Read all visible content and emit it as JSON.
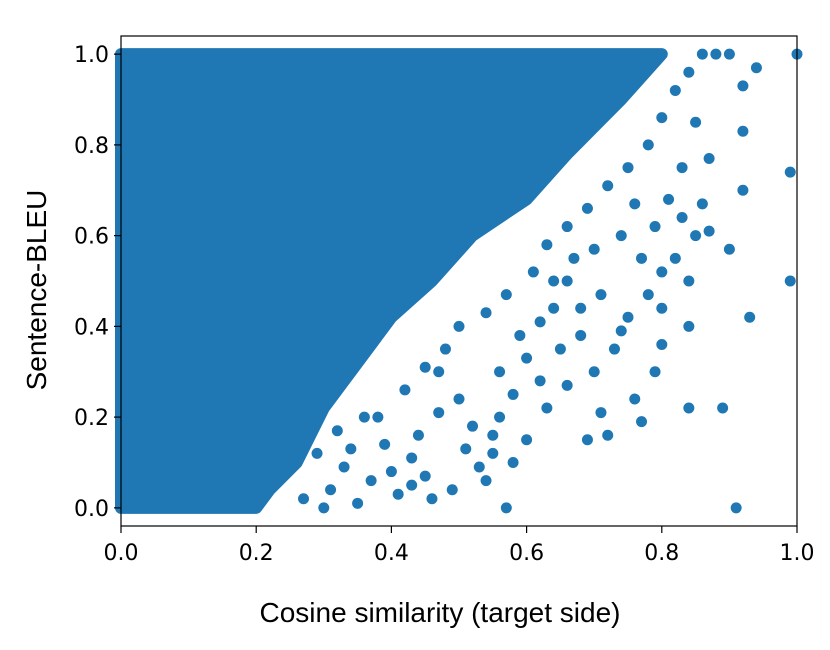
{
  "chart_data": {
    "type": "scatter",
    "title": "",
    "xlabel": "Cosine similarity  (target side)",
    "ylabel": "Sentence-BLEU",
    "xlim": [
      0.0,
      1.0
    ],
    "ylim": [
      -0.04,
      1.04
    ],
    "x_ticks": [
      "0.0",
      "0.2",
      "0.4",
      "0.6",
      "0.8",
      "1.0"
    ],
    "y_ticks": [
      "0.0",
      "0.2",
      "0.4",
      "0.6",
      "0.8",
      "1.0"
    ],
    "x_tick_values": [
      0.0,
      0.2,
      0.4,
      0.6,
      0.8,
      1.0
    ],
    "y_tick_values": [
      0.0,
      0.2,
      0.4,
      0.6,
      0.8,
      1.0
    ],
    "grid": false,
    "legend": "none",
    "marker_color": "#1f77b4",
    "dense_region_boundary": [
      [
        0.0,
        0.0
      ],
      [
        0.0,
        1.0
      ],
      [
        0.8,
        1.0
      ],
      [
        0.74,
        0.9
      ],
      [
        0.66,
        0.78
      ],
      [
        0.6,
        0.68
      ],
      [
        0.52,
        0.6
      ],
      [
        0.46,
        0.5
      ],
      [
        0.4,
        0.42
      ],
      [
        0.34,
        0.3
      ],
      [
        0.3,
        0.22
      ],
      [
        0.26,
        0.1
      ],
      [
        0.22,
        0.04
      ],
      [
        0.2,
        0.0
      ]
    ],
    "series": [
      {
        "values": [
          [
            1.0,
            1.0
          ],
          [
            0.94,
            0.97
          ],
          [
            0.92,
            0.93
          ],
          [
            0.99,
            0.74
          ],
          [
            0.99,
            0.5
          ],
          [
            0.92,
            0.7
          ],
          [
            0.93,
            0.42
          ],
          [
            0.9,
            0.57
          ],
          [
            0.91,
            0.0
          ],
          [
            0.89,
            0.22
          ],
          [
            0.87,
            0.61
          ],
          [
            0.86,
            0.67
          ],
          [
            0.87,
            0.77
          ],
          [
            0.92,
            0.83
          ],
          [
            0.84,
            0.22
          ],
          [
            0.84,
            0.4
          ],
          [
            0.84,
            0.5
          ],
          [
            0.8,
            0.44
          ],
          [
            0.79,
            0.3
          ],
          [
            0.77,
            0.19
          ],
          [
            0.72,
            0.16
          ],
          [
            0.77,
            0.55
          ],
          [
            0.75,
            0.42
          ],
          [
            0.73,
            0.35
          ],
          [
            0.71,
            0.47
          ],
          [
            0.68,
            0.38
          ],
          [
            0.66,
            0.5
          ],
          [
            0.64,
            0.44
          ],
          [
            0.62,
            0.28
          ],
          [
            0.6,
            0.33
          ],
          [
            0.58,
            0.25
          ],
          [
            0.57,
            0.0
          ],
          [
            0.56,
            0.2
          ],
          [
            0.55,
            0.16
          ],
          [
            0.53,
            0.09
          ],
          [
            0.51,
            0.13
          ],
          [
            0.49,
            0.04
          ],
          [
            0.47,
            0.21
          ],
          [
            0.45,
            0.07
          ],
          [
            0.43,
            0.11
          ],
          [
            0.41,
            0.03
          ],
          [
            0.39,
            0.14
          ],
          [
            0.37,
            0.06
          ],
          [
            0.35,
            0.01
          ],
          [
            0.33,
            0.09
          ],
          [
            0.31,
            0.04
          ],
          [
            0.3,
            0.0
          ],
          [
            0.27,
            0.02
          ],
          [
            0.29,
            0.12
          ],
          [
            0.32,
            0.17
          ],
          [
            0.36,
            0.2
          ],
          [
            0.42,
            0.26
          ],
          [
            0.45,
            0.31
          ],
          [
            0.48,
            0.35
          ],
          [
            0.5,
            0.4
          ],
          [
            0.54,
            0.43
          ],
          [
            0.57,
            0.47
          ],
          [
            0.61,
            0.52
          ],
          [
            0.63,
            0.58
          ],
          [
            0.66,
            0.62
          ],
          [
            0.69,
            0.66
          ],
          [
            0.72,
            0.71
          ],
          [
            0.75,
            0.75
          ],
          [
            0.78,
            0.8
          ],
          [
            0.8,
            0.86
          ],
          [
            0.82,
            0.92
          ],
          [
            0.84,
            0.96
          ],
          [
            0.86,
            1.0
          ],
          [
            0.88,
            1.0
          ],
          [
            0.9,
            1.0
          ],
          [
            0.85,
            0.85
          ],
          [
            0.83,
            0.75
          ],
          [
            0.81,
            0.68
          ],
          [
            0.79,
            0.62
          ],
          [
            0.76,
            0.67
          ],
          [
            0.74,
            0.6
          ],
          [
            0.7,
            0.57
          ],
          [
            0.67,
            0.55
          ],
          [
            0.65,
            0.35
          ],
          [
            0.63,
            0.22
          ],
          [
            0.6,
            0.15
          ],
          [
            0.58,
            0.1
          ],
          [
            0.54,
            0.06
          ],
          [
            0.52,
            0.18
          ],
          [
            0.5,
            0.24
          ],
          [
            0.47,
            0.3
          ],
          [
            0.44,
            0.16
          ],
          [
            0.4,
            0.08
          ],
          [
            0.38,
            0.2
          ],
          [
            0.34,
            0.13
          ],
          [
            0.82,
            0.55
          ],
          [
            0.8,
            0.36
          ],
          [
            0.76,
            0.24
          ],
          [
            0.7,
            0.3
          ],
          [
            0.68,
            0.44
          ],
          [
            0.66,
            0.27
          ],
          [
            0.64,
            0.5
          ],
          [
            0.62,
            0.41
          ],
          [
            0.59,
            0.38
          ],
          [
            0.56,
            0.3
          ],
          [
            0.85,
            0.6
          ],
          [
            0.83,
            0.64
          ],
          [
            0.8,
            0.52
          ],
          [
            0.78,
            0.47
          ],
          [
            0.74,
            0.39
          ],
          [
            0.71,
            0.21
          ],
          [
            0.69,
            0.15
          ],
          [
            0.55,
            0.12
          ],
          [
            0.46,
            0.02
          ],
          [
            0.43,
            0.05
          ]
        ]
      }
    ]
  }
}
